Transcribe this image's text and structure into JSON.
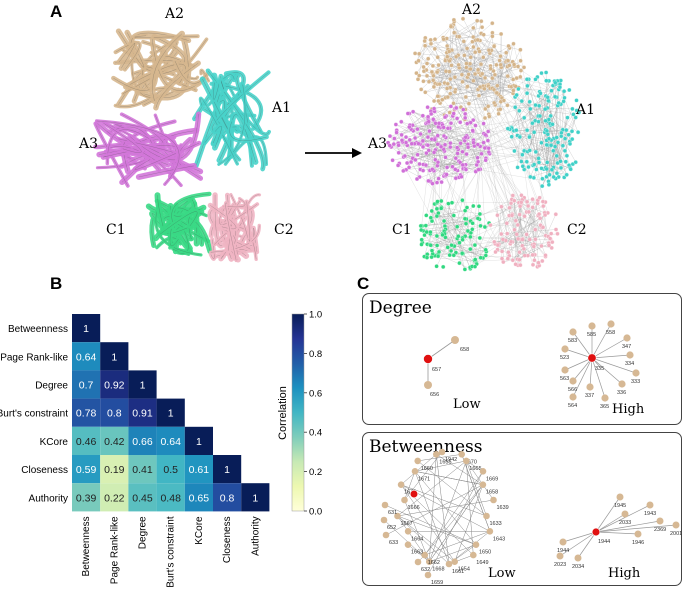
{
  "panels": {
    "a": {
      "letter": "A"
    },
    "b": {
      "letter": "B"
    },
    "c": {
      "letter": "C"
    }
  },
  "panelA": {
    "structure_labels": {
      "a2": "A2",
      "a1": "A1",
      "a3": "A3",
      "c1": "C1",
      "c2": "C2"
    },
    "network_labels": {
      "a2": "A2",
      "a1": "A1",
      "a3": "A3",
      "c1": "C1",
      "c2": "C2"
    },
    "domain_colors": {
      "A1": "#40d0c8",
      "A2": "#d4b48a",
      "A3": "#d070d8",
      "C1": "#30d880",
      "C2": "#f0b0c0"
    }
  },
  "chart_data": {
    "type": "heatmap",
    "subtype": "lower-triangle correlation matrix",
    "variables": [
      "Betweenness",
      "Page Rank-like",
      "Degree",
      "Burt's constraint",
      "KCore",
      "Closeness",
      "Authority"
    ],
    "matrix": [
      [
        1
      ],
      [
        0.64,
        1
      ],
      [
        0.7,
        0.92,
        1
      ],
      [
        0.78,
        0.8,
        0.91,
        1
      ],
      [
        0.46,
        0.42,
        0.66,
        0.64,
        1
      ],
      [
        0.59,
        0.19,
        0.41,
        0.5,
        0.61,
        1
      ],
      [
        0.39,
        0.22,
        0.45,
        0.48,
        0.65,
        0.8,
        1
      ]
    ],
    "cell_labels": [
      [
        "1"
      ],
      [
        "0.64",
        "1"
      ],
      [
        "0.7",
        "0.92",
        "1"
      ],
      [
        "0.78",
        "0.8",
        "0.91",
        "1"
      ],
      [
        "0.46",
        "0.42",
        "0.66",
        "0.64",
        "1"
      ],
      [
        "0.59",
        "0.19",
        "0.41",
        "0.5",
        "0.61",
        "1"
      ],
      [
        "0.39",
        "0.22",
        "0.45",
        "0.48",
        "0.65",
        "0.8",
        "1"
      ]
    ],
    "row_labels": [
      "Betweenness",
      "Page Rank-like",
      "Degree",
      "Burt's constraint",
      "KCore",
      "Closeness",
      "Authority"
    ],
    "col_labels": [
      "Betweenness",
      "Page Rank-like",
      "Degree",
      "Burt's constraint",
      "KCore",
      "Closeness",
      "Authority"
    ],
    "colorbar": {
      "label": "Correlation",
      "range": [
        0.0,
        1.0
      ],
      "ticks": [
        "0.0",
        "0.2",
        "0.4",
        "0.6",
        "0.8",
        "1.0"
      ],
      "colormap": "YlGnBu"
    }
  },
  "panelC": {
    "degree": {
      "title": "Degree",
      "low_label": "Low",
      "high_label": "High",
      "low_node_labels": [
        "658",
        "657",
        "656"
      ],
      "high_node_labels": [
        "583",
        "585",
        "558",
        "347",
        "523",
        "335",
        "334",
        "563",
        "566",
        "333",
        "337",
        "336",
        "564",
        "365"
      ]
    },
    "betweenness": {
      "title": "Betweenness",
      "low_label": "Low",
      "high_label": "High",
      "low_node_labels": [
        "1942",
        "1670",
        "1665",
        "1669",
        "1658",
        "1639",
        "1633",
        "1643",
        "1650",
        "1649",
        "1654",
        "1661",
        "1668",
        "1662",
        "1663",
        "1664",
        "1667",
        "1666",
        "1676",
        "1671",
        "1660",
        "1655",
        "631",
        "652",
        "633",
        "632",
        "1659"
      ],
      "high_node_labels": [
        "1945",
        "1943",
        "2033",
        "2369",
        "2001",
        "1946",
        "1944",
        "2023",
        "2034",
        "1873"
      ]
    }
  }
}
